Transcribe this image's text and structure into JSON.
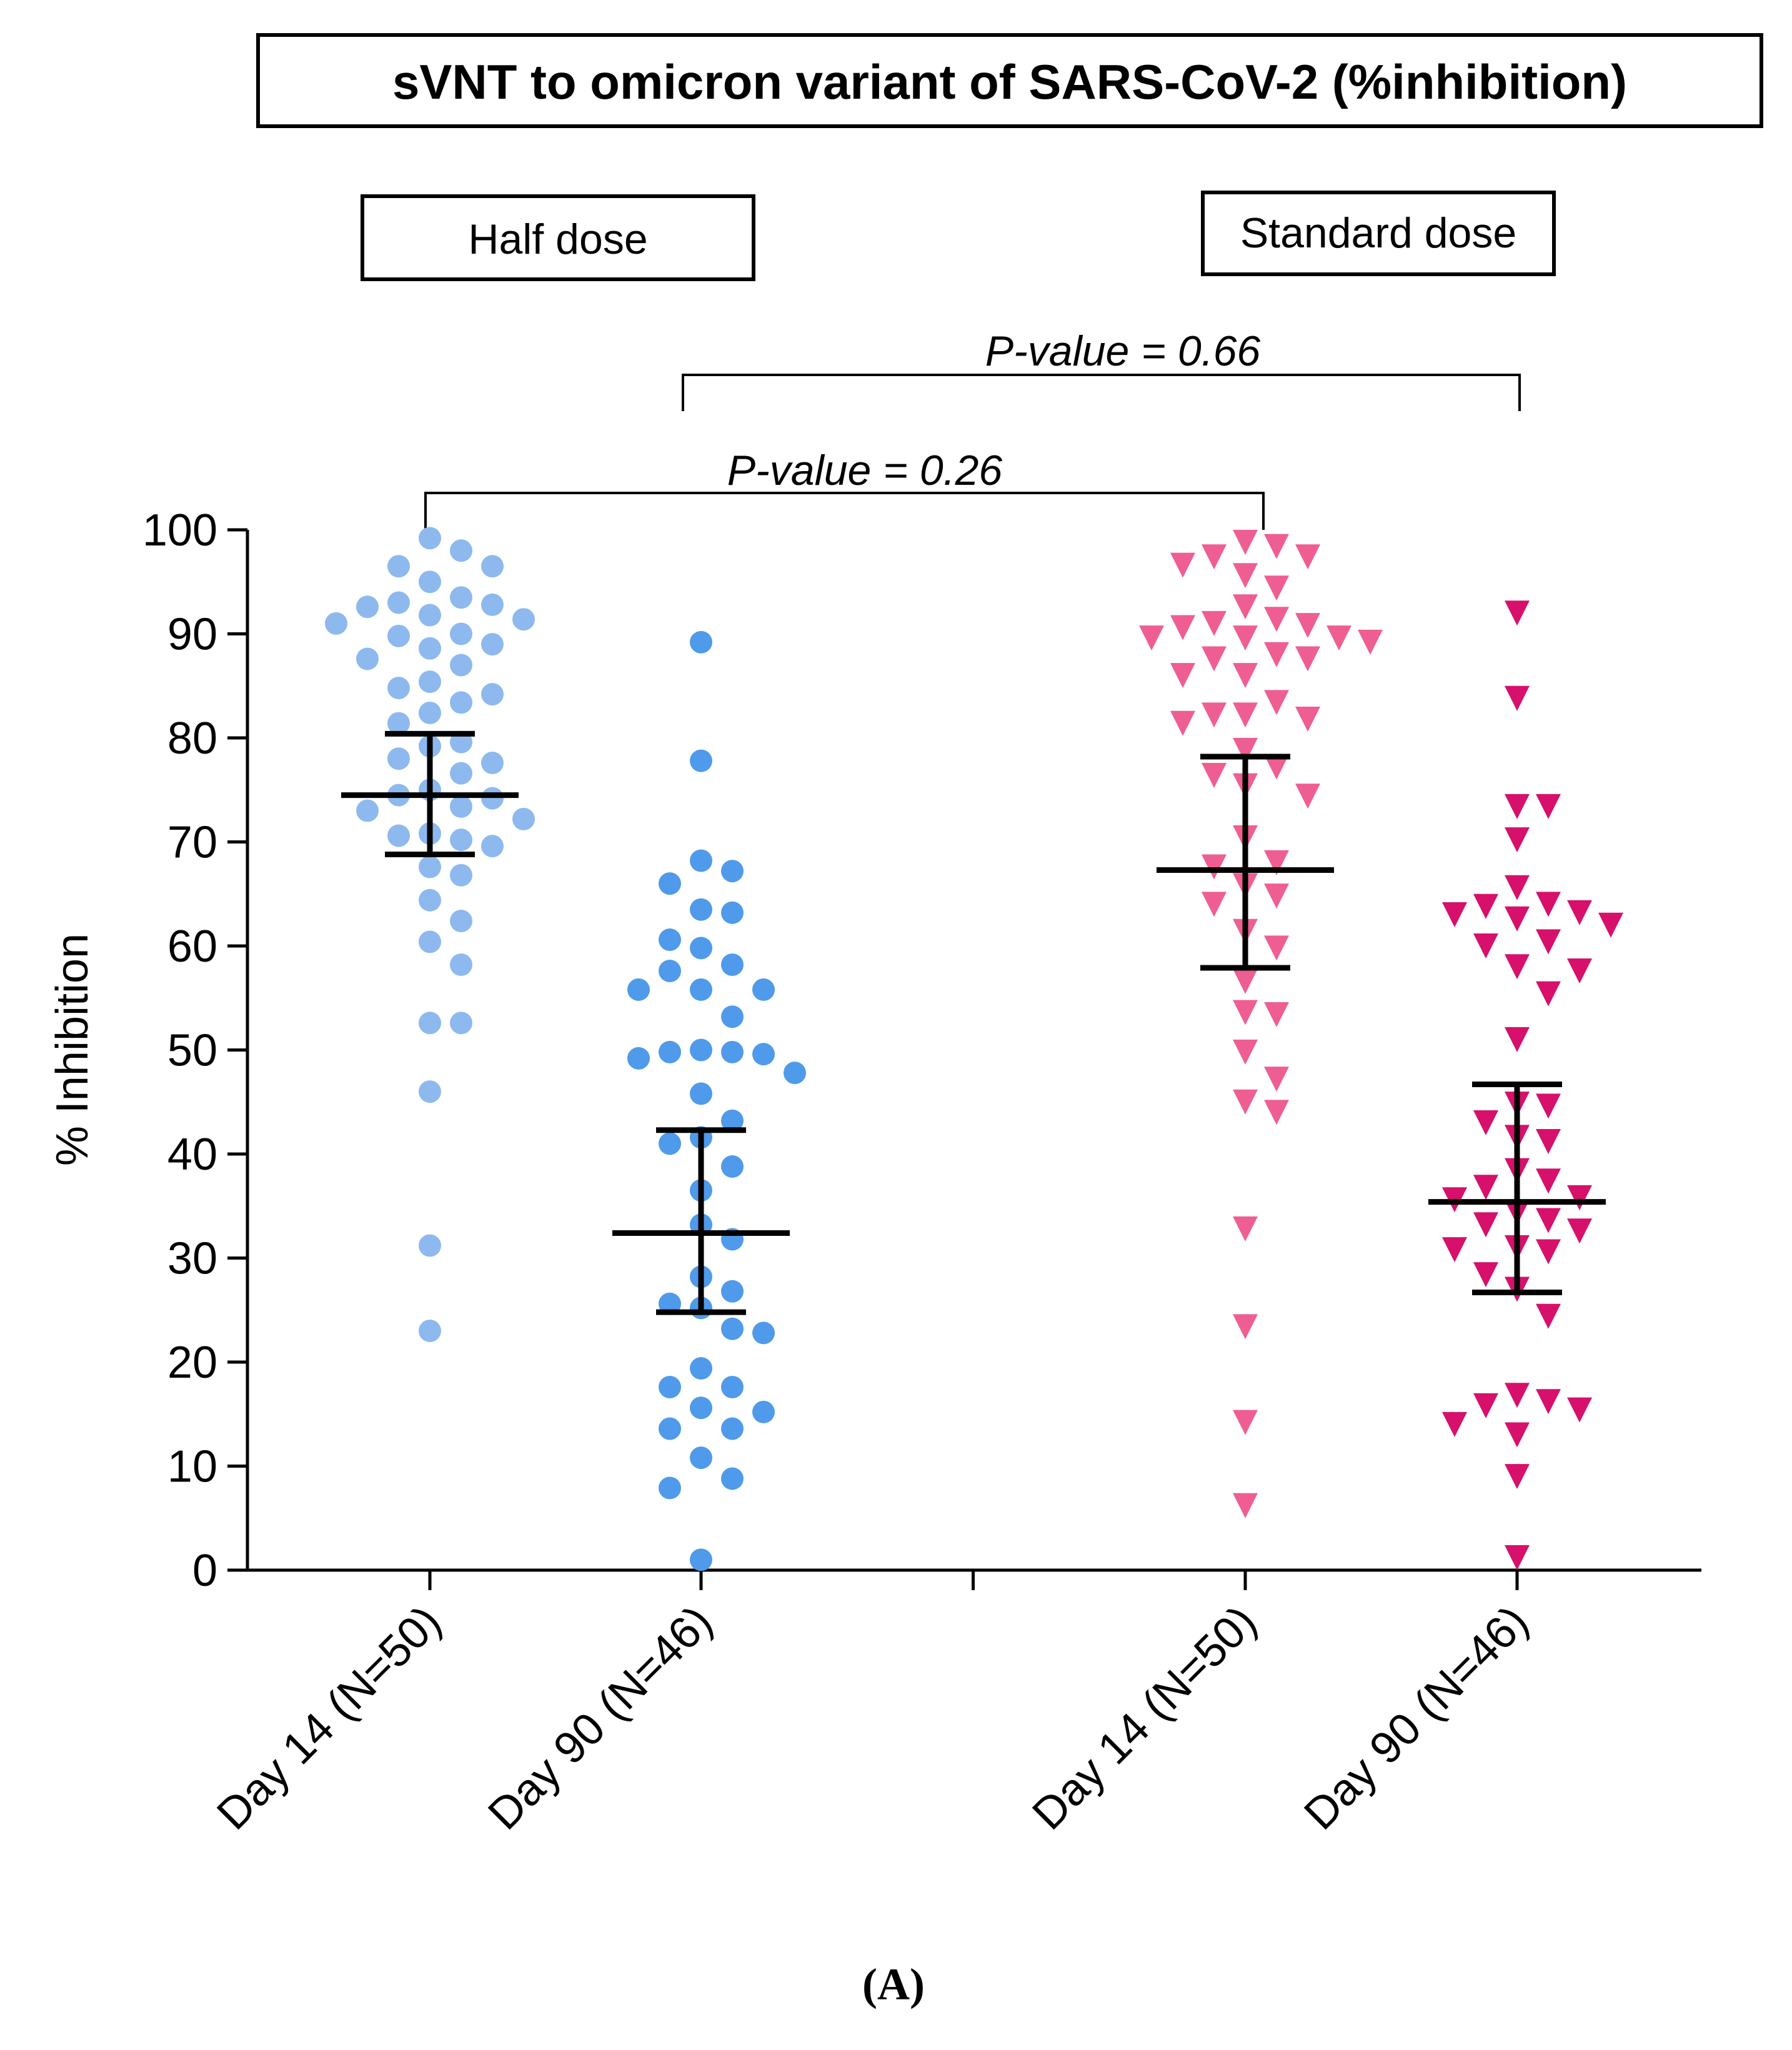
{
  "chart_data": {
    "type": "scatter",
    "title": "sVNT to omicron variant of SARS-CoV-2 (%inhibition)",
    "group_labels": [
      "Half dose",
      "Standard dose"
    ],
    "ylabel": "% Inhibition",
    "ylim": [
      0,
      100
    ],
    "yticks": [
      0,
      10,
      20,
      30,
      40,
      50,
      60,
      70,
      80,
      90,
      100
    ],
    "categories": [
      "Day 14 (N=50)",
      "Day 90 (N=46)",
      "Day 14 (N=50)",
      "Day 90 (N=46)"
    ],
    "comparisons": [
      {
        "from": 0,
        "to": 2,
        "label": "P-value = 0.26"
      },
      {
        "from": 1,
        "to": 3,
        "label": "P-value = 0.66"
      }
    ],
    "series": [
      {
        "name": "Half dose Day 14 (N=50)",
        "group": "Half dose",
        "marker": "circle",
        "color": "#8DB9EE",
        "mean": 74.5,
        "ci_lower": 68.8,
        "ci_upper": 80.4,
        "values": [
          99.2,
          98.0,
          96.5,
          96.5,
          95.0,
          93.5,
          93.0,
          92.8,
          92.6,
          91.8,
          91.4,
          91.0,
          90.0,
          89.8,
          89.0,
          88.6,
          87.6,
          85.4,
          84.8,
          84.2,
          83.4,
          82.4,
          79.6,
          79.2,
          78.0,
          77.6,
          76.6,
          75.0,
          74.5,
          74.2,
          73.4,
          73.0,
          72.2,
          70.8,
          70.6,
          70.2,
          69.6,
          67.6,
          66.8,
          64.4,
          62.4,
          60.4,
          58.2,
          52.6,
          52.6,
          46.0,
          31.2,
          23.0,
          81.4,
          87.0
        ]
      },
      {
        "name": "Half dose Day 90 (N=46)",
        "group": "Half dose",
        "marker": "circle",
        "color": "#4F9AEA",
        "mean": 32.4,
        "ci_lower": 24.8,
        "ci_upper": 42.3,
        "values": [
          89.2,
          77.8,
          68.2,
          67.2,
          66.0,
          63.5,
          63.2,
          60.6,
          59.8,
          58.2,
          57.6,
          55.8,
          55.8,
          55.8,
          53.2,
          50.0,
          49.8,
          49.8,
          49.6,
          49.2,
          47.8,
          45.8,
          43.2,
          41.6,
          41.0,
          33.2,
          28.2,
          26.8,
          25.6,
          25.2,
          23.2,
          22.8,
          19.4,
          17.6,
          17.6,
          15.6,
          15.2,
          13.6,
          13.6,
          10.8,
          8.8,
          7.9,
          1.0,
          36.5,
          31.8,
          38.8
        ]
      },
      {
        "name": "Standard dose Day 14 (N=50)",
        "group": "Standard dose",
        "marker": "triangle-down",
        "color": "#EE5E93",
        "mean": 67.3,
        "ci_lower": 57.9,
        "ci_upper": 78.2,
        "values": [
          98.8,
          98.4,
          97.4,
          97.4,
          96.6,
          95.6,
          94.4,
          92.6,
          91.4,
          91.0,
          90.8,
          90.6,
          89.6,
          89.6,
          89.6,
          89.2,
          88.0,
          87.6,
          87.6,
          86.0,
          86.0,
          83.4,
          82.2,
          82.2,
          81.8,
          81.4,
          78.8,
          77.2,
          76.4,
          75.4,
          74.4,
          70.4,
          68.0,
          67.6,
          65.8,
          64.8,
          64.0,
          59.8,
          56.6,
          53.6,
          53.4,
          49.8,
          47.2,
          45.0,
          44.0,
          32.8,
          23.4,
          14.2,
          6.2,
          61.4
        ]
      },
      {
        "name": "Standard dose Day 90 (N=46)",
        "group": "Standard dose",
        "marker": "triangle-down",
        "color": "#D6106B",
        "mean": 35.4,
        "ci_lower": 26.7,
        "ci_upper": 46.7,
        "values": [
          92.0,
          83.8,
          73.4,
          73.4,
          70.2,
          65.6,
          64.0,
          63.8,
          63.2,
          63.0,
          62.6,
          60.4,
          60.0,
          58.0,
          57.6,
          55.4,
          51.0,
          44.6,
          43.0,
          41.6,
          41.2,
          35.8,
          35.6,
          34.4,
          32.6,
          31.0,
          30.6,
          28.4,
          27.0,
          24.4,
          16.8,
          16.2,
          15.8,
          15.4,
          14.0,
          13.0,
          9.0,
          1.2,
          62.0,
          38.4,
          30.8,
          36.8,
          44.8,
          33.2,
          33.6,
          37.4
        ]
      }
    ]
  },
  "figure_label": "(A)"
}
